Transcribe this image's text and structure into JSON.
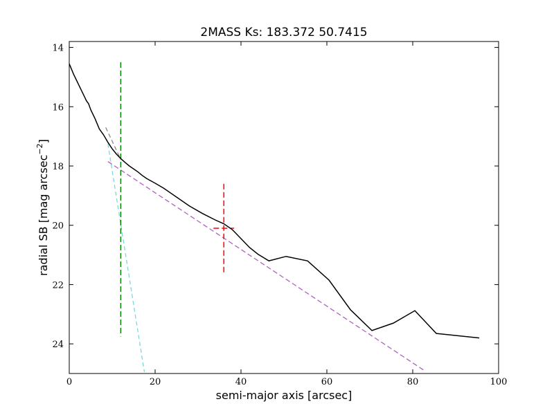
{
  "chart_data": {
    "type": "line",
    "title": "2MASS Ks: 183.372 50.7415",
    "xlabel": "semi-major axis [arcsec]",
    "ylabel_main": "radial SB [mag arcsec",
    "ylabel_exp": "−2",
    "ylabel_close": "]",
    "xlim": [
      0,
      100
    ],
    "ylim": [
      25,
      13.8
    ],
    "y_inverted": true,
    "grid": false,
    "x_ticks": [
      0,
      20,
      40,
      60,
      80,
      100
    ],
    "y_ticks": [
      14,
      16,
      18,
      20,
      22,
      24
    ],
    "profile": {
      "color": "#000000",
      "x": [
        0,
        1,
        2,
        3,
        4,
        4.5,
        5,
        6,
        7,
        8,
        9,
        10,
        11,
        12,
        13,
        14,
        15,
        16,
        17,
        18,
        20,
        22,
        25,
        28,
        31,
        34,
        36,
        38,
        40,
        42,
        44,
        46.5,
        50.5,
        55.5,
        60.5,
        65.5,
        70.5,
        75.5,
        80.5,
        85.5,
        95.5
      ],
      "y": [
        14.55,
        14.9,
        15.2,
        15.5,
        15.8,
        15.9,
        16.1,
        16.4,
        16.75,
        16.95,
        17.2,
        17.42,
        17.6,
        17.75,
        17.88,
        18.0,
        18.1,
        18.2,
        18.32,
        18.42,
        18.58,
        18.75,
        19.05,
        19.35,
        19.6,
        19.82,
        19.95,
        20.15,
        20.45,
        20.75,
        20.98,
        21.2,
        21.05,
        21.2,
        21.85,
        22.85,
        23.55,
        23.3,
        22.88,
        23.65,
        23.8
      ]
    },
    "fit_inner": {
      "color": "#7fd8d8",
      "x": [
        9,
        17.5
      ],
      "y": [
        17.25,
        24.95
      ]
    },
    "fit_outer": {
      "color": "#b05fc0",
      "x": [
        9,
        82.7
      ],
      "y": [
        17.85,
        24.9
      ]
    },
    "fit_transition": {
      "color": "#888888",
      "x": [
        8.5,
        12
      ],
      "y": [
        16.7,
        17.78
      ]
    },
    "vline": {
      "color": "#008000",
      "x": 12,
      "y_from": 14.5,
      "y_to": 23.75
    },
    "marker": {
      "color": "#ff0000",
      "x": 36,
      "y": 20.1,
      "x_half_width": 2.4,
      "y_half_height": 1.5
    }
  }
}
